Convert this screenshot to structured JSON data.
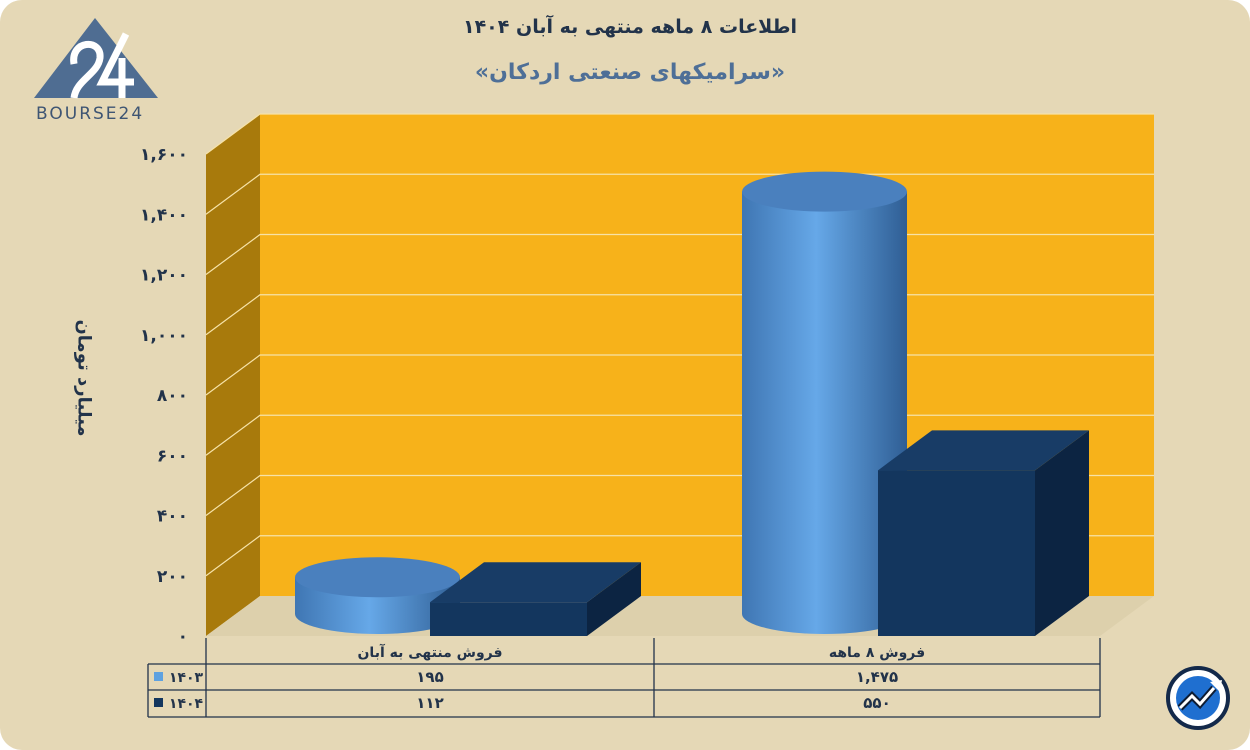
{
  "header": {
    "title": "اطلاعات ۸ ماهه منتهی به آبان ۱۴۰۴",
    "subtitle": "«سرامیکهای صنعتی اردکان»"
  },
  "logo": {
    "text": "BOURSE24",
    "mark": "24"
  },
  "corner_icon": "trend-chart-icon",
  "colors": {
    "background": "#e5d8b6",
    "plot_back": "#f7b21a",
    "plot_side": "#a87a0c",
    "series_1403": "#5fa2e0",
    "series_1404": "#13365e",
    "text": "#22334a",
    "subtitle": "#4e6f97"
  },
  "chart_data": {
    "type": "bar",
    "style": "3d",
    "title": "اطلاعات ۸ ماهه منتهی به آبان ۱۴۰۴",
    "subtitle": "«سرامیکهای صنعتی اردکان»",
    "ylabel": "میلیارد تومان",
    "xlabel": "",
    "ylim": [
      0,
      1600
    ],
    "yticks": [
      0,
      200,
      400,
      600,
      800,
      1000,
      1200,
      1400,
      1600
    ],
    "ytick_labels": [
      "۰",
      "۲۰۰",
      "۴۰۰",
      "۶۰۰",
      "۸۰۰",
      "۱,۰۰۰",
      "۱,۲۰۰",
      "۱,۴۰۰",
      "۱,۶۰۰"
    ],
    "grid": true,
    "categories": [
      "فروش منتهی به آبان",
      "فروش ۸ ماهه"
    ],
    "series": [
      {
        "name": "۱۴۰۳",
        "shape": "cylinder",
        "values": [
          195,
          1475
        ],
        "value_labels": [
          "۱۹۵",
          "۱,۴۷۵"
        ]
      },
      {
        "name": "۱۴۰۴",
        "shape": "box",
        "values": [
          112,
          550
        ],
        "value_labels": [
          "۱۱۲",
          "۵۵۰"
        ]
      }
    ],
    "legend": "data-table-left"
  }
}
